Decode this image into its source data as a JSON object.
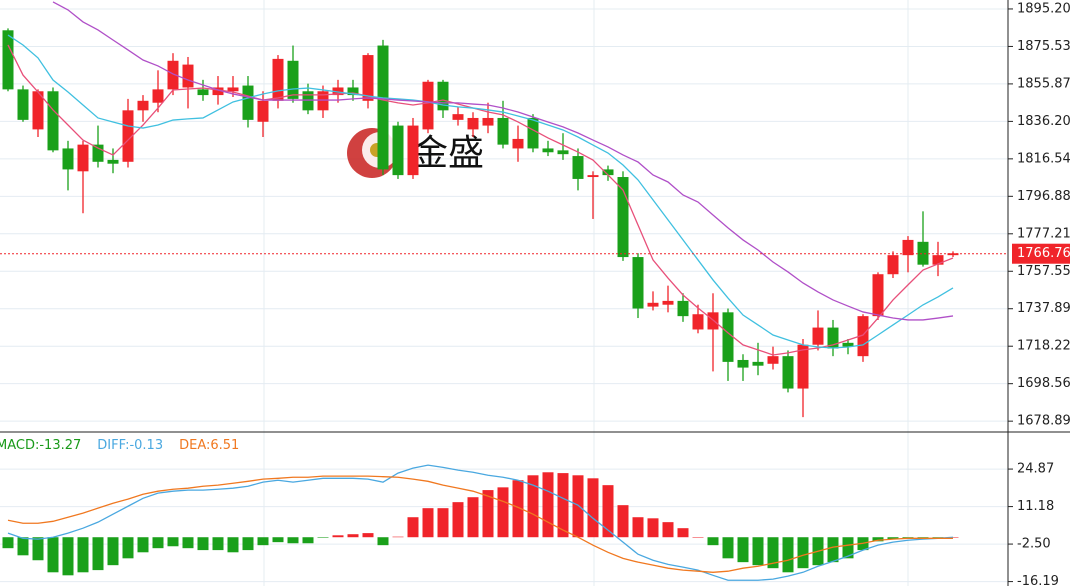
{
  "chart_data": [
    {
      "type": "candlestick",
      "watermark": "金盛",
      "up_color": "#f0242a",
      "down_color": "#1aa01a",
      "open": [
        1884,
        1853,
        1832,
        1852,
        1822,
        1810,
        1824,
        1816,
        1815,
        1842,
        1846,
        1853,
        1854,
        1853,
        1850,
        1852,
        1855,
        1836,
        1847,
        1868,
        1852,
        1842,
        1850,
        1854,
        1847,
        1876,
        1834,
        1808,
        1832,
        1857,
        1837,
        1832,
        1834,
        1838,
        1822,
        1838,
        1822,
        1821,
        1818,
        1807,
        1811,
        1807,
        1765,
        1739,
        1740,
        1742,
        1727,
        1727,
        1736,
        1711,
        1710,
        1709,
        1713,
        1696,
        1719,
        1728,
        1720,
        1713,
        1734,
        1756,
        1766,
        1773,
        1761,
        1766
      ],
      "high": [
        1885,
        1855,
        1853,
        1854,
        1826,
        1826,
        1834,
        1822,
        1848,
        1850,
        1863,
        1872,
        1870,
        1858,
        1860,
        1860,
        1860,
        1852,
        1871,
        1876,
        1856,
        1855,
        1858,
        1858,
        1872,
        1879,
        1836,
        1838,
        1858,
        1858,
        1844,
        1841,
        1846,
        1847,
        1834,
        1840,
        1826,
        1830,
        1822,
        1810,
        1813,
        1810,
        1767,
        1747,
        1750,
        1746,
        1740,
        1746,
        1738,
        1714,
        1720,
        1718,
        1716,
        1722,
        1737,
        1732,
        1722,
        1735,
        1757,
        1768,
        1776,
        1789,
        1773,
        1768
      ],
      "low": [
        1852,
        1836,
        1828,
        1820,
        1800,
        1788,
        1812,
        1809,
        1812,
        1836,
        1841,
        1850,
        1843,
        1847,
        1845,
        1849,
        1833,
        1828,
        1843,
        1846,
        1840,
        1838,
        1846,
        1847,
        1843,
        1808,
        1806,
        1806,
        1830,
        1838,
        1834,
        1828,
        1830,
        1822,
        1815,
        1820,
        1818,
        1816,
        1800,
        1785,
        1805,
        1763,
        1733,
        1737,
        1736,
        1731,
        1725,
        1705,
        1700,
        1700,
        1703,
        1706,
        1694,
        1681,
        1716,
        1713,
        1714,
        1710,
        1732,
        1754,
        1757,
        1760,
        1755,
        1765
      ],
      "close": [
        1853,
        1837,
        1852,
        1821,
        1811,
        1824,
        1815,
        1814,
        1842,
        1847,
        1853,
        1868,
        1866,
        1850,
        1854,
        1854,
        1837,
        1847,
        1869,
        1848,
        1842,
        1852,
        1854,
        1850,
        1871,
        1811,
        1808,
        1834,
        1857,
        1842,
        1840,
        1838,
        1838,
        1824,
        1827,
        1822,
        1820,
        1819,
        1806,
        1808,
        1808,
        1765,
        1738,
        1741,
        1742,
        1734,
        1735,
        1736,
        1710,
        1707,
        1708,
        1713,
        1696,
        1719,
        1728,
        1717,
        1718,
        1734,
        1756,
        1766,
        1774,
        1761,
        1766,
        1767
      ],
      "lines": [
        {
          "color": "#e8507a",
          "values": [
            1876.3,
            1860.5,
            1851.6,
            1842.2,
            1834.3,
            1826.4,
            1822.2,
            1818.6,
            1826.4,
            1834.3,
            1843.2,
            1852.7,
            1853.2,
            1853.7,
            1852.7,
            1851.6,
            1849.5,
            1847.4,
            1848.5,
            1850.1,
            1850.1,
            1850.1,
            1850.6,
            1851.1,
            1849.5,
            1847.4,
            1845.9,
            1844.8,
            1845.9,
            1847.4,
            1845.3,
            1843.2,
            1841.1,
            1839.6,
            1835.9,
            1831.7,
            1827.5,
            1823.8,
            1820.1,
            1815.9,
            1808.1,
            1800.2,
            1781.8,
            1763.5,
            1754.0,
            1745.1,
            1738.3,
            1732.0,
            1725.2,
            1718.9,
            1716.3,
            1713.6,
            1714.7,
            1716.3,
            1717.3,
            1718.9,
            1721.5,
            1724.1,
            1733.0,
            1742.5,
            1750.4,
            1758.2,
            1761.4,
            1764.5
          ]
        },
        {
          "color": "#40c0e0",
          "values": [
            1881.5,
            1876.3,
            1869.5,
            1857.9,
            1851.6,
            1844.8,
            1838.0,
            1835.9,
            1833.8,
            1832.7,
            1834.3,
            1836.9,
            1837.5,
            1838.0,
            1842.2,
            1846.4,
            1848.5,
            1850.6,
            1852.2,
            1853.2,
            1853.7,
            1852.7,
            1851.6,
            1850.6,
            1849.5,
            1848.5,
            1848.0,
            1847.4,
            1846.4,
            1844.8,
            1843.8,
            1843.2,
            1842.2,
            1841.1,
            1839.0,
            1836.9,
            1834.3,
            1831.7,
            1828.0,
            1823.8,
            1819.6,
            1813.3,
            1805.5,
            1795.0,
            1784.5,
            1774.0,
            1763.5,
            1753.0,
            1743.5,
            1734.6,
            1729.4,
            1724.1,
            1721.5,
            1718.9,
            1717.8,
            1717.3,
            1717.8,
            1718.9,
            1724.1,
            1729.4,
            1734.6,
            1739.9,
            1744.1,
            1748.8
          ]
        },
        {
          "color": "#b050c8",
          "values": [
            null,
            null,
            null,
            1898.9,
            1894.7,
            1888.4,
            1884.2,
            1878.9,
            1873.7,
            1868.4,
            1865.3,
            1861.1,
            1857.9,
            1855.3,
            1852.7,
            1850.6,
            1849.0,
            1847.4,
            1847.4,
            1847.4,
            1847.4,
            1847.4,
            1847.4,
            1848.0,
            1848.5,
            1848.0,
            1847.4,
            1846.9,
            1846.4,
            1845.9,
            1845.9,
            1845.3,
            1844.8,
            1843.2,
            1841.1,
            1838.5,
            1835.9,
            1833.3,
            1830.1,
            1826.4,
            1822.8,
            1818.6,
            1814.9,
            1808.1,
            1804.4,
            1797.6,
            1793.9,
            1787.1,
            1780.3,
            1774.0,
            1768.7,
            1762.4,
            1757.2,
            1751.4,
            1746.7,
            1742.5,
            1739.3,
            1736.2,
            1734.6,
            1733.0,
            1732.0,
            1732.0,
            1733.0,
            1734.1
          ]
        }
      ],
      "last_price": 1766.76,
      "last_price_color": "#f0242a",
      "ylim": [
        1673.2,
        1899.9
      ],
      "yticks": [
        {
          "value": 1895.2,
          "label": "1895.20"
        },
        1875.53,
        1855.87,
        {
          "value": 1836.2,
          "label": "1836.20"
        },
        1816.54,
        1796.88,
        1777.21,
        1757.55,
        1737.89,
        1718.22,
        1698.56,
        1678.89
      ],
      "grid": true
    },
    {
      "type": "macd",
      "legend": [
        {
          "name": "MACD:",
          "value": -13.27,
          "color": "#1a9a1a"
        },
        {
          "name": "DIFF:",
          "value": -0.13,
          "color": "#4aa8e0"
        },
        {
          "name": "DEA:",
          "value": 6.51,
          "color": "#f07820"
        }
      ],
      "up_color": "#f0242a",
      "down_color": "#1aa01a",
      "histogram": [
        -4.0,
        -6.6,
        -8.4,
        -12.8,
        -13.9,
        -12.8,
        -12.0,
        -10.2,
        -7.7,
        -5.5,
        -4.0,
        -3.3,
        -4.0,
        -4.7,
        -4.7,
        -5.5,
        -4.7,
        -2.9,
        -1.8,
        -2.2,
        -2.2,
        -0.2,
        0.7,
        1.1,
        1.5,
        -2.9,
        0.2,
        7.3,
        10.6,
        10.6,
        12.8,
        14.6,
        17.2,
        18.2,
        20.8,
        22.6,
        23.7,
        23.4,
        22.6,
        21.5,
        19.0,
        11.7,
        7.3,
        6.9,
        5.5,
        3.3,
        0,
        -2.9,
        -7.7,
        -9.1,
        -10.2,
        -11.3,
        -12.8,
        -11.3,
        -10.2,
        -9.1,
        -7.7,
        -4.7,
        -1.5,
        -0.7,
        -0.4,
        -0.7,
        -0.4,
        0
      ],
      "diff": [
        1.5,
        -0.4,
        -0.7,
        0,
        1.5,
        3.3,
        5.5,
        8.4,
        11.3,
        14.2,
        16.1,
        16.8,
        17.2,
        17.2,
        17.5,
        17.9,
        18.6,
        20.1,
        20.8,
        20.1,
        20.8,
        21.5,
        21.5,
        21.5,
        21.2,
        20.1,
        23.4,
        25.2,
        26.3,
        25.5,
        24.5,
        23.7,
        22.6,
        21.9,
        20.8,
        19.0,
        16.8,
        14.2,
        11.7,
        6.9,
        2.6,
        -1.8,
        -6.2,
        -8.4,
        -9.9,
        -10.9,
        -12.0,
        -13.9,
        -15.7,
        -15.7,
        -15.7,
        -15.3,
        -14.2,
        -12.8,
        -10.6,
        -8.8,
        -6.9,
        -4.7,
        -2.9,
        -1.8,
        -1.1,
        -0.7,
        -0.4,
        0
      ],
      "dea": [
        6.2,
        5.1,
        5.1,
        5.8,
        7.3,
        8.8,
        10.6,
        12.4,
        13.9,
        15.7,
        16.8,
        17.5,
        17.9,
        18.6,
        19.0,
        19.7,
        20.4,
        21.2,
        21.5,
        21.9,
        21.9,
        22.3,
        22.3,
        22.3,
        22.3,
        22.1,
        21.9,
        21.2,
        20.4,
        19.0,
        17.9,
        16.8,
        15.0,
        13.1,
        10.9,
        8.4,
        5.5,
        2.6,
        0,
        -2.9,
        -5.5,
        -7.7,
        -9.1,
        -10.2,
        -11.3,
        -12.0,
        -12.4,
        -12.8,
        -12.4,
        -11.3,
        -10.6,
        -9.5,
        -8.4,
        -6.6,
        -5.1,
        -3.6,
        -2.9,
        -2.2,
        -1.1,
        -0.7,
        -0.4,
        -0.4,
        -0.4,
        -0.4
      ],
      "ylim": [
        -17.8,
        38.4
      ],
      "yticks": [
        24.87,
        11.18,
        {
          "value": -2.5,
          "label": "-2.50"
        },
        -16.19
      ],
      "grid": true
    }
  ]
}
